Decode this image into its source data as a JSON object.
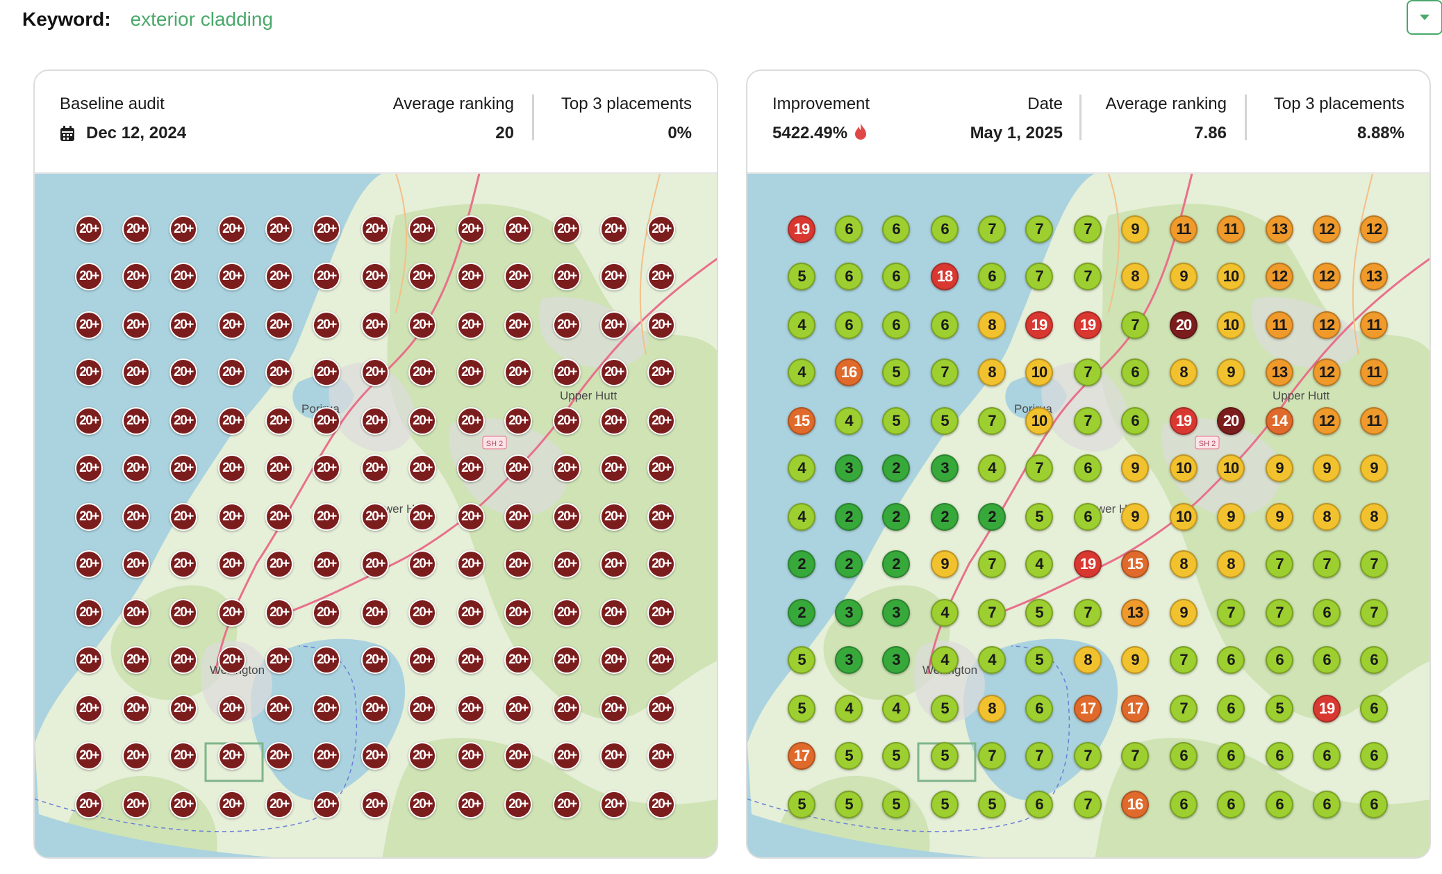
{
  "keyword": {
    "label": "Keyword:",
    "value": "exterior cladding"
  },
  "baseline": {
    "title": "Baseline audit",
    "date": "Dec 12, 2024",
    "avg_label": "Average ranking",
    "avg_value": "20",
    "top3_label": "Top 3 placements",
    "top3_value": "0%",
    "grid_value": "20+"
  },
  "current": {
    "improvement_label": "Improvement",
    "improvement_value": "5422.49%",
    "date_label": "Date",
    "date_value": "May 1, 2025",
    "avg_label": "Average ranking",
    "avg_value": "7.86",
    "top3_label": "Top 3 placements",
    "top3_value": "8.88%"
  },
  "map_labels": {
    "upper_hutt": "Upper Hutt",
    "lower_hutt": "Lower Hutt",
    "porirua": "Porirua",
    "wellington": "Wellington",
    "sh2": "SH 2"
  },
  "ranking_colors": {
    "top": "#37a83a",
    "good": "#9ccf2f",
    "mid": "#f2c12e",
    "warn": "#ef9a2b",
    "bad": "#e06a2b",
    "worse": "#d93831",
    "worst": "#7c1d1d"
  },
  "grid": [
    [
      19,
      6,
      6,
      6,
      7,
      7,
      7,
      9,
      11,
      11,
      13,
      12,
      12
    ],
    [
      5,
      6,
      6,
      18,
      6,
      7,
      7,
      8,
      9,
      10,
      12,
      12,
      13
    ],
    [
      4,
      6,
      6,
      6,
      8,
      19,
      19,
      7,
      20,
      10,
      11,
      12,
      11
    ],
    [
      4,
      16,
      5,
      7,
      8,
      10,
      7,
      6,
      8,
      9,
      13,
      12,
      11
    ],
    [
      15,
      4,
      5,
      5,
      7,
      10,
      7,
      6,
      19,
      20,
      14,
      12,
      11
    ],
    [
      4,
      3,
      2,
      3,
      4,
      7,
      6,
      9,
      10,
      10,
      9,
      9,
      9
    ],
    [
      4,
      2,
      2,
      2,
      2,
      5,
      6,
      9,
      10,
      9,
      9,
      8,
      8
    ],
    [
      2,
      2,
      2,
      9,
      7,
      4,
      19,
      15,
      8,
      8,
      7,
      7,
      7
    ],
    [
      2,
      3,
      3,
      4,
      7,
      5,
      7,
      13,
      9,
      7,
      7,
      6,
      7
    ],
    [
      5,
      3,
      3,
      4,
      4,
      5,
      8,
      9,
      7,
      6,
      6,
      6,
      6
    ],
    [
      5,
      4,
      4,
      5,
      8,
      6,
      17,
      17,
      7,
      6,
      5,
      19,
      6
    ],
    [
      17,
      5,
      5,
      5,
      7,
      7,
      7,
      7,
      6,
      6,
      6,
      6,
      6
    ],
    [
      5,
      5,
      5,
      5,
      5,
      6,
      7,
      16,
      6,
      6,
      6,
      6,
      6
    ]
  ]
}
